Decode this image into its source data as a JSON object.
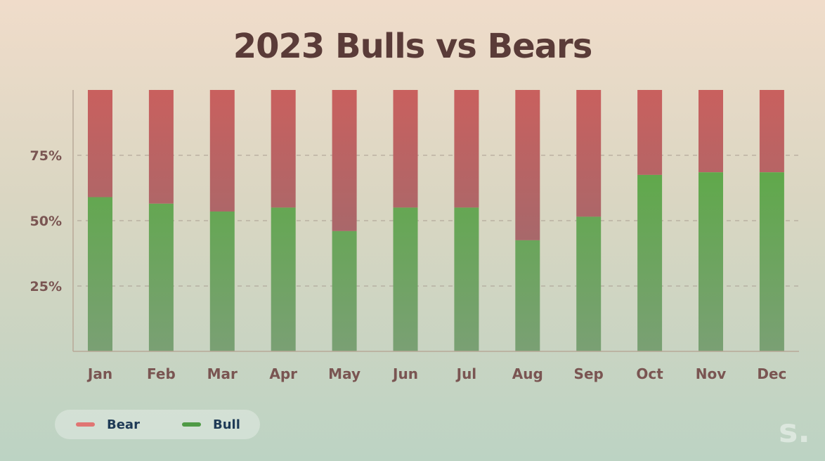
{
  "chart_data": {
    "type": "bar",
    "stacked": true,
    "title": "2023 Bulls vs Bears",
    "categories": [
      "Jan",
      "Feb",
      "Mar",
      "Apr",
      "May",
      "Jun",
      "Jul",
      "Aug",
      "Sep",
      "Oct",
      "Nov",
      "Dec"
    ],
    "series": [
      {
        "name": "Bull",
        "color": "#5ea948",
        "values": [
          59,
          56.5,
          53.5,
          55,
          46,
          55,
          55,
          42.5,
          51.5,
          67.5,
          68.5,
          68.5
        ]
      },
      {
        "name": "Bear",
        "color": "#c9605e",
        "values": [
          41,
          43.5,
          46.5,
          45,
          54,
          45,
          45,
          57.5,
          48.5,
          32.5,
          31.5,
          31.5
        ]
      }
    ],
    "ylim": [
      0,
      100
    ],
    "yticks": [
      {
        "value": 25,
        "label": "25%"
      },
      {
        "value": 50,
        "label": "50%"
      },
      {
        "value": 75,
        "label": "75%"
      }
    ],
    "grid": "horizontal dashed",
    "legend_position": "bottom-left",
    "legend": [
      {
        "label": "Bear",
        "color": "#e07573"
      },
      {
        "label": "Bull",
        "color": "#4f9a45"
      }
    ],
    "colors": {
      "title": "#5a3b38",
      "labels": "#7a5552",
      "axis": "#b8a898",
      "grid": "#a89a8e"
    }
  },
  "brand": {
    "mark": "s."
  }
}
